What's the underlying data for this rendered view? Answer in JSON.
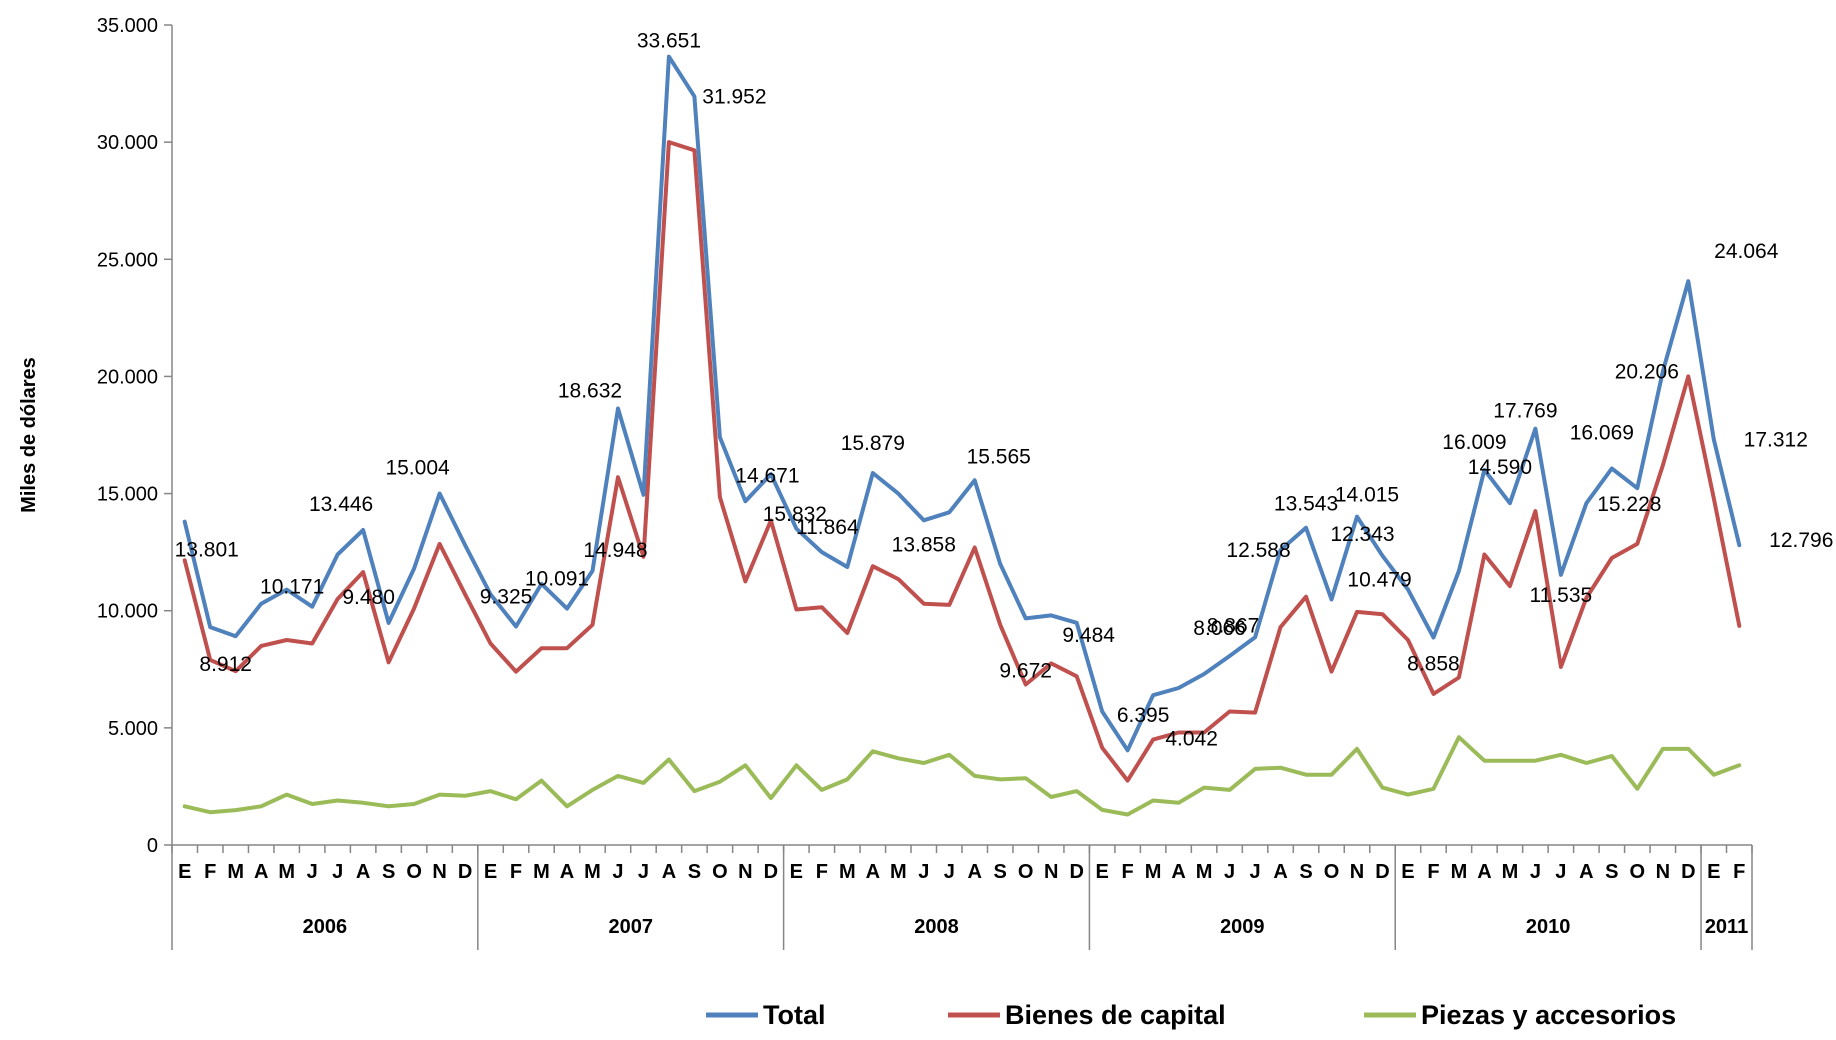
{
  "chart_data": {
    "type": "line",
    "ylabel": "Miles de dólares",
    "ylim": [
      0,
      35000
    ],
    "yticks": [
      0,
      5000,
      10000,
      15000,
      20000,
      25000,
      30000,
      35000
    ],
    "ytick_labels": [
      "0",
      "5.000",
      "10.000",
      "15.000",
      "20.000",
      "25.000",
      "30.000",
      "35.000"
    ],
    "years": [
      {
        "label": "2006",
        "months": [
          "E",
          "F",
          "M",
          "A",
          "M",
          "J",
          "J",
          "A",
          "S",
          "O",
          "N",
          "D"
        ]
      },
      {
        "label": "2007",
        "months": [
          "E",
          "F",
          "M",
          "A",
          "M",
          "J",
          "J",
          "A",
          "S",
          "O",
          "N",
          "D"
        ]
      },
      {
        "label": "2008",
        "months": [
          "E",
          "F",
          "M",
          "A",
          "M",
          "J",
          "J",
          "A",
          "S",
          "O",
          "N",
          "D"
        ]
      },
      {
        "label": "2009",
        "months": [
          "E",
          "F",
          "M",
          "A",
          "M",
          "J",
          "J",
          "A",
          "S",
          "O",
          "N",
          "D"
        ]
      },
      {
        "label": "2010",
        "months": [
          "E",
          "F",
          "M",
          "A",
          "M",
          "J",
          "J",
          "A",
          "S",
          "O",
          "N",
          "D"
        ]
      },
      {
        "label": "2011",
        "months": [
          "E",
          "F"
        ]
      }
    ],
    "series": [
      {
        "name": "Total",
        "color": "#4F81BD",
        "values": [
          13801,
          9300,
          8912,
          10300,
          10900,
          10171,
          12400,
          13446,
          9480,
          11800,
          15004,
          12800,
          10700,
          9325,
          11150,
          10091,
          11700,
          18632,
          14948,
          33651,
          31952,
          17400,
          14671,
          15832,
          13500,
          12500,
          11864,
          15879,
          15000,
          13858,
          14200,
          15565,
          12000,
          9672,
          9800,
          9484,
          5700,
          4042,
          6395,
          6700,
          7300,
          8066,
          8867,
          12588,
          13543,
          10479,
          14015,
          12343,
          10900,
          8858,
          11700,
          16009,
          14590,
          17769,
          11535,
          14590,
          16069,
          15228,
          20206,
          24064,
          17312,
          12796
        ]
      },
      {
        "name": "Bienes de capital",
        "color": "#C0504D",
        "values": [
          12150,
          7900,
          7420,
          8500,
          8750,
          8600,
          10500,
          11650,
          7800,
          10100,
          12850,
          10700,
          8600,
          7400,
          8400,
          8400,
          9400,
          15700,
          12300,
          30000,
          29650,
          14850,
          11250,
          13850,
          10050,
          10150,
          9050,
          11900,
          11350,
          10300,
          10250,
          12700,
          9400,
          6850,
          7750,
          7200,
          4150,
          2750,
          4500,
          4800,
          4800,
          5700,
          5650,
          9300,
          10600,
          7400,
          9950,
          9850,
          8750,
          6450,
          7150,
          12400,
          11050,
          14250,
          7600,
          10550,
          12250,
          12850,
          16200,
          20000,
          14800,
          9350
        ]
      },
      {
        "name": "Piezas y accesorios",
        "color": "#9BBB59",
        "values": [
          1650,
          1400,
          1490,
          1650,
          2150,
          1750,
          1900,
          1800,
          1650,
          1750,
          2150,
          2100,
          2300,
          1950,
          2750,
          1650,
          2350,
          2950,
          2650,
          3650,
          2300,
          2700,
          3400,
          2000,
          3400,
          2350,
          2800,
          4000,
          3700,
          3500,
          3850,
          2950,
          2800,
          2850,
          2050,
          2300,
          1500,
          1300,
          1900,
          1800,
          2450,
          2350,
          3250,
          3300,
          3000,
          3000,
          4100,
          2450,
          2150,
          2400,
          4600,
          3600,
          3600,
          3600,
          3850,
          3500,
          3800,
          2400,
          4100,
          4100,
          3000,
          3400
        ]
      }
    ],
    "annotations": [
      {
        "series": 0,
        "index": 0,
        "text": "13.801"
      },
      {
        "series": 0,
        "index": 2,
        "text": "8.912"
      },
      {
        "series": 0,
        "index": 5,
        "text": "10.171"
      },
      {
        "series": 0,
        "index": 7,
        "text": "13.446"
      },
      {
        "series": 0,
        "index": 8,
        "text": "9.480"
      },
      {
        "series": 0,
        "index": 10,
        "text": "15.004"
      },
      {
        "series": 0,
        "index": 13,
        "text": "9.325"
      },
      {
        "series": 0,
        "index": 15,
        "text": "10.091"
      },
      {
        "series": 0,
        "index": 17,
        "text": "18.632"
      },
      {
        "series": 0,
        "index": 18,
        "text": "14.948"
      },
      {
        "series": 0,
        "index": 19,
        "text": "33.651"
      },
      {
        "series": 0,
        "index": 20,
        "text": "31.952"
      },
      {
        "series": 0,
        "index": 22,
        "text": "14.671"
      },
      {
        "series": 0,
        "index": 23,
        "text": "15.832"
      },
      {
        "series": 0,
        "index": 26,
        "text": "11.864"
      },
      {
        "series": 0,
        "index": 27,
        "text": "15.879"
      },
      {
        "series": 0,
        "index": 29,
        "text": "13.858"
      },
      {
        "series": 0,
        "index": 31,
        "text": "15.565"
      },
      {
        "series": 0,
        "index": 33,
        "text": "9.672"
      },
      {
        "series": 0,
        "index": 35,
        "text": "9.484"
      },
      {
        "series": 0,
        "index": 37,
        "text": "4.042"
      },
      {
        "series": 0,
        "index": 38,
        "text": "6.395"
      },
      {
        "series": 0,
        "index": 41,
        "text": "8.066"
      },
      {
        "series": 0,
        "index": 42,
        "text": "8.867"
      },
      {
        "series": 0,
        "index": 43,
        "text": "12.588"
      },
      {
        "series": 0,
        "index": 44,
        "text": "13.543"
      },
      {
        "series": 0,
        "index": 45,
        "text": "10.479"
      },
      {
        "series": 0,
        "index": 46,
        "text": "14.015"
      },
      {
        "series": 0,
        "index": 47,
        "text": "12.343"
      },
      {
        "series": 0,
        "index": 49,
        "text": "8.858"
      },
      {
        "series": 0,
        "index": 51,
        "text": "16.009"
      },
      {
        "series": 0,
        "index": 52,
        "text": "14.590"
      },
      {
        "series": 0,
        "index": 53,
        "text": "17.769"
      },
      {
        "series": 0,
        "index": 54,
        "text": "11.535"
      },
      {
        "series": 0,
        "index": 56,
        "text": "16.069"
      },
      {
        "series": 0,
        "index": 57,
        "text": "15.228"
      },
      {
        "series": 0,
        "index": 58,
        "text": "20.206"
      },
      {
        "series": 0,
        "index": 59,
        "text": "24.064"
      },
      {
        "series": 0,
        "index": 60,
        "text": "17.312"
      },
      {
        "series": 0,
        "index": 61,
        "text": "12.796"
      }
    ],
    "legend": {
      "position": "bottom"
    },
    "grid": false
  }
}
